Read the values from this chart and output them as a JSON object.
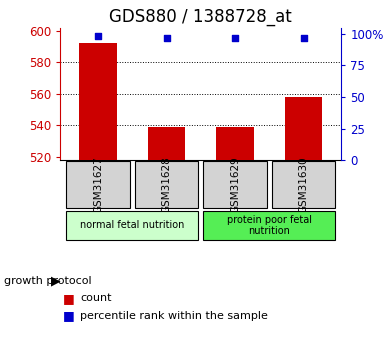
{
  "title": "GDS880 / 1388728_at",
  "categories": [
    "GSM31627",
    "GSM31628",
    "GSM31629",
    "GSM31630"
  ],
  "bar_values": [
    592,
    539,
    539,
    558
  ],
  "percentile_values": [
    98,
    97,
    97,
    97
  ],
  "ylim_left": [
    518,
    602
  ],
  "ylim_right": [
    0,
    105
  ],
  "yticks_left": [
    520,
    540,
    560,
    580,
    600
  ],
  "yticks_right": [
    0,
    25,
    50,
    75,
    100
  ],
  "yticklabels_right": [
    "0",
    "25",
    "50",
    "75",
    "100%"
  ],
  "grid_lines": [
    540,
    560,
    580
  ],
  "bar_color": "#cc0000",
  "percentile_color": "#0000cc",
  "bar_bottom": 518,
  "groups": [
    {
      "label": "normal fetal nutrition",
      "indices": [
        0,
        1
      ],
      "color": "#ccffcc"
    },
    {
      "label": "protein poor fetal\nnutrition",
      "indices": [
        2,
        3
      ],
      "color": "#55ee55"
    }
  ],
  "growth_protocol_label": "growth protocol",
  "title_fontsize": 12,
  "tick_fontsize": 8.5,
  "cat_fontsize": 7.5,
  "group_fontsize": 7,
  "legend_fontsize": 8
}
